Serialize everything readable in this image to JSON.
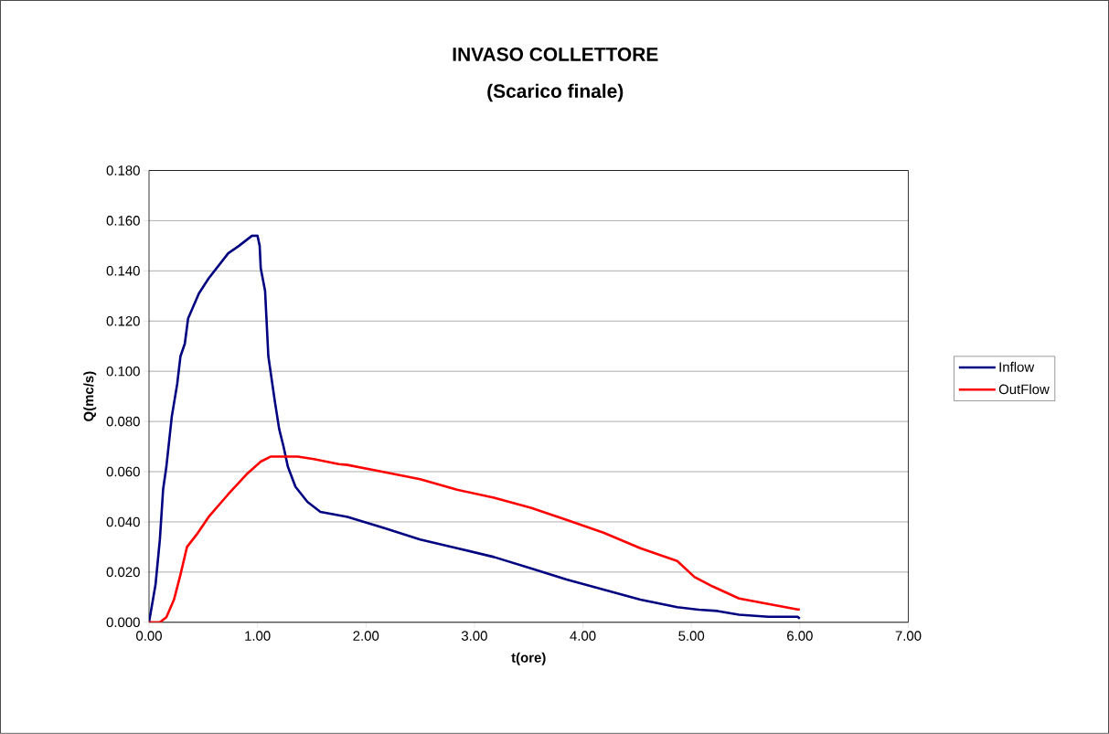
{
  "chart_data": {
    "type": "line",
    "title": "INVASO COLLETTORE",
    "subtitle": "(Scarico finale)",
    "xlabel": "t(ore)",
    "ylabel": "Q(mc/s)",
    "xlim": [
      0,
      7
    ],
    "ylim": [
      0,
      0.18
    ],
    "xticks": [
      {
        "value": 0,
        "label": "0.00"
      },
      {
        "value": 1,
        "label": "1.00"
      },
      {
        "value": 2,
        "label": "2.00"
      },
      {
        "value": 3,
        "label": "3.00"
      },
      {
        "value": 4,
        "label": "4.00"
      },
      {
        "value": 5,
        "label": "5.00"
      },
      {
        "value": 6,
        "label": "6.00"
      },
      {
        "value": 7,
        "label": "7.00"
      }
    ],
    "yticks": [
      {
        "value": 0,
        "label": "0.000"
      },
      {
        "value": 0.02,
        "label": "0.020"
      },
      {
        "value": 0.04,
        "label": "0.040"
      },
      {
        "value": 0.06,
        "label": "0.060"
      },
      {
        "value": 0.08,
        "label": "0.080"
      },
      {
        "value": 0.1,
        "label": "0.100"
      },
      {
        "value": 0.12,
        "label": "0.120"
      },
      {
        "value": 0.14,
        "label": "0.140"
      },
      {
        "value": 0.16,
        "label": "0.160"
      },
      {
        "value": 0.18,
        "label": "0.180"
      }
    ],
    "grid": "y",
    "legend": "right",
    "marker": "none",
    "line_style": "solid",
    "series": [
      {
        "name": "Inflow",
        "color": "#000080",
        "x": [
          0,
          0.06,
          0.1,
          0.13,
          0.16,
          0.21,
          0.26,
          0.29,
          0.33,
          0.36,
          0.46,
          0.55,
          0.73,
          0.83,
          0.92,
          0.95,
          1.0,
          1.02,
          1.03,
          1.07,
          1.1,
          1.16,
          1.2,
          1.24,
          1.28,
          1.35,
          1.46,
          1.58,
          1.83,
          2.17,
          2.5,
          2.84,
          3.18,
          3.52,
          3.85,
          4.19,
          4.53,
          4.87,
          5.07,
          5.24,
          5.44,
          5.71,
          5.98,
          6.0
        ],
        "values": [
          0,
          0.015,
          0.033,
          0.053,
          0.062,
          0.082,
          0.095,
          0.106,
          0.111,
          0.121,
          0.131,
          0.137,
          0.147,
          0.15,
          0.153,
          0.154,
          0.154,
          0.15,
          0.141,
          0.132,
          0.106,
          0.088,
          0.077,
          0.07,
          0.062,
          0.054,
          0.048,
          0.044,
          0.042,
          0.0375,
          0.033,
          0.0295,
          0.026,
          0.0215,
          0.017,
          0.013,
          0.009,
          0.006,
          0.005,
          0.0045,
          0.003,
          0.0022,
          0.0022,
          0.0015
        ]
      },
      {
        "name": "OutFlow",
        "color": "#ff0000",
        "x": [
          0,
          0.1,
          0.16,
          0.23,
          0.29,
          0.35,
          0.44,
          0.55,
          0.73,
          0.9,
          1.03,
          1.12,
          1.26,
          1.37,
          1.52,
          1.75,
          1.83,
          2.17,
          2.5,
          2.84,
          3.18,
          3.52,
          3.85,
          4.19,
          4.53,
          4.87,
          5.03,
          5.2,
          5.44,
          5.71,
          5.98,
          6.0
        ],
        "values": [
          0,
          0,
          0.002,
          0.009,
          0.019,
          0.03,
          0.035,
          0.042,
          0.051,
          0.059,
          0.064,
          0.066,
          0.066,
          0.066,
          0.065,
          0.063,
          0.0627,
          0.0598,
          0.057,
          0.0528,
          0.0496,
          0.0456,
          0.0408,
          0.0357,
          0.0295,
          0.0244,
          0.018,
          0.0142,
          0.0095,
          0.0073,
          0.0051,
          0.0051
        ]
      }
    ]
  }
}
